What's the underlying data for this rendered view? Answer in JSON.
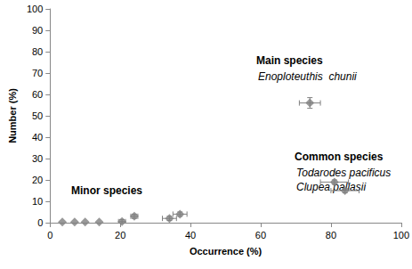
{
  "chart_data": {
    "type": "scatter",
    "x_label": "Occurrence (%)",
    "y_label": "Number (%)",
    "xlim": [
      0,
      100
    ],
    "xticks": [
      0,
      20,
      40,
      60,
      80,
      100
    ],
    "ylim": [
      0,
      100
    ],
    "yticks": [
      0,
      10,
      20,
      30,
      40,
      50,
      60,
      70,
      80,
      90,
      100
    ],
    "grid": false,
    "marker": "diamond",
    "color": "#808080",
    "x": [
      74,
      81,
      84,
      37,
      34,
      24,
      20.5,
      14,
      10,
      7,
      3.5
    ],
    "values": [
      56,
      19,
      15,
      4,
      2,
      3,
      0.5,
      0.3,
      0.3,
      0.3,
      0.3
    ],
    "x_error": [
      3,
      4,
      4,
      2,
      2,
      1,
      1,
      0,
      0,
      0,
      0
    ],
    "y_error": [
      2.5,
      1,
      1,
      1,
      1,
      1,
      1,
      0,
      0,
      0,
      0
    ],
    "annotations": [
      {
        "heading": "Main species",
        "species": [
          "Enoploteuthis  chunii"
        ]
      },
      {
        "heading": "Common species",
        "species": [
          "Todarodes pacificus",
          "Clupea pallasii"
        ]
      },
      {
        "heading": "Minor species",
        "species": []
      }
    ]
  }
}
